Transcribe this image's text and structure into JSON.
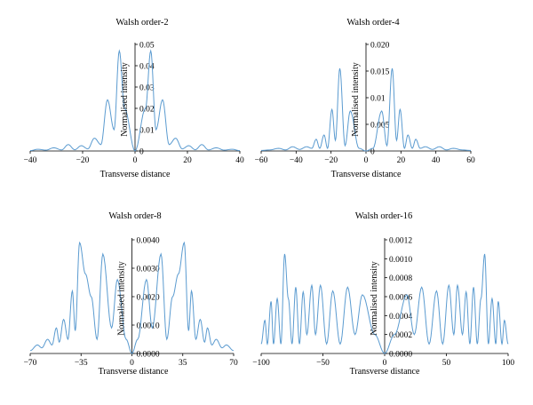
{
  "chart_data": [
    {
      "type": "line",
      "title": "Walsh order-2",
      "xlabel": "Transverse distance",
      "ylabel": "Normalised intensity",
      "xlim": [
        -40,
        40
      ],
      "ylim": [
        0,
        0.05
      ],
      "xticks": [
        -40,
        -20,
        0,
        20,
        40
      ],
      "yticks": [
        0,
        0.01,
        0.02,
        0.03,
        0.04,
        0.05
      ],
      "ytick_labels": [
        "0",
        "0.01",
        "0.02",
        "0.03",
        "0.04",
        "0.05"
      ],
      "x_symmetric": true,
      "peaks": [
        [
          0,
          0
        ],
        [
          4,
          0.02
        ],
        [
          6,
          0.047
        ],
        [
          8,
          0.01
        ],
        [
          10.5,
          0.024
        ],
        [
          13,
          0.003
        ],
        [
          15.5,
          0.006
        ],
        [
          18,
          0.001
        ],
        [
          20.5,
          0.0025
        ],
        [
          23,
          0.0006
        ],
        [
          25.5,
          0.003
        ],
        [
          28,
          0.0005
        ],
        [
          31,
          0.0015
        ],
        [
          34,
          0.0004
        ],
        [
          37,
          0.0008
        ],
        [
          40,
          0.0002
        ]
      ]
    },
    {
      "type": "line",
      "title": "Walsh order-4",
      "xlabel": "Transverse distance",
      "ylabel": "Normalised intensity",
      "xlim": [
        -60,
        60
      ],
      "ylim": [
        0,
        0.02
      ],
      "xticks": [
        -60,
        -40,
        -20,
        0,
        20,
        40,
        60
      ],
      "yticks": [
        0,
        0.005,
        0.01,
        0.015,
        0.02
      ],
      "ytick_labels": [
        "0",
        "0.005",
        "0.01",
        "0.015",
        "0.020"
      ],
      "x_symmetric": true,
      "peaks": [
        [
          0,
          0
        ],
        [
          4,
          0.0005
        ],
        [
          9,
          0.0075
        ],
        [
          12,
          0.001
        ],
        [
          15,
          0.0155
        ],
        [
          17.5,
          0.002
        ],
        [
          19.5,
          0.0078
        ],
        [
          22,
          0.0005
        ],
        [
          24,
          0.003
        ],
        [
          26.5,
          0.0005
        ],
        [
          28.5,
          0.0022
        ],
        [
          31,
          0.0005
        ],
        [
          34,
          0.0008
        ],
        [
          38,
          0.0003
        ],
        [
          42,
          0.0008
        ],
        [
          46,
          0.0002
        ],
        [
          50,
          0.0005
        ],
        [
          55,
          0.0002
        ],
        [
          60,
          0.0001
        ]
      ]
    },
    {
      "type": "line",
      "title": "Walsh order-8",
      "xlabel": "Transverse distance",
      "ylabel": "Normalised intensity",
      "xlim": [
        -70,
        70
      ],
      "ylim": [
        0,
        0.004
      ],
      "xticks": [
        -70,
        -35,
        0,
        35,
        70
      ],
      "yticks": [
        0,
        0.001,
        0.002,
        0.003,
        0.004
      ],
      "ytick_labels": [
        "0.0000",
        "0.0010",
        "0.0020",
        "0.0030",
        "0.0040"
      ],
      "x_symmetric": true,
      "peaks": [
        [
          0,
          0
        ],
        [
          4,
          0.0005
        ],
        [
          10,
          0.0026
        ],
        [
          14,
          0.0009
        ],
        [
          20,
          0.0035
        ],
        [
          24,
          0.0005
        ],
        [
          28,
          0.002
        ],
        [
          32,
          0.0028
        ],
        [
          36,
          0.0039
        ],
        [
          39,
          0.0008
        ],
        [
          41,
          0.0022
        ],
        [
          44,
          0.0005
        ],
        [
          47,
          0.0012
        ],
        [
          50,
          0.0004
        ],
        [
          52,
          0.0009
        ],
        [
          55,
          0.0003
        ],
        [
          58,
          0.0005
        ],
        [
          62,
          0.0002
        ],
        [
          65,
          0.0003
        ],
        [
          70,
          0.0001
        ]
      ]
    },
    {
      "type": "line",
      "title": "Walsh order-16",
      "xlabel": "Transverse distance",
      "ylabel": "Normalised intensity",
      "xlim": [
        -100,
        100
      ],
      "ylim": [
        0,
        0.0012
      ],
      "xticks": [
        -100,
        -50,
        0,
        50,
        100
      ],
      "yticks": [
        0,
        0.0002,
        0.0004,
        0.0006,
        0.0008,
        0.001,
        0.0012
      ],
      "ytick_labels": [
        "0.0000",
        "0.0002",
        "0.0004",
        "0.0006",
        "0.0008",
        "0.0010",
        "0.0012"
      ],
      "x_symmetric": true,
      "peaks": [
        [
          0,
          0
        ],
        [
          8,
          0.0002
        ],
        [
          18,
          0.00062
        ],
        [
          24,
          0.0002
        ],
        [
          30,
          0.0007
        ],
        [
          36,
          0.0001
        ],
        [
          42,
          0.00066
        ],
        [
          47,
          0.0001
        ],
        [
          52,
          0.00072
        ],
        [
          56,
          0.0002
        ],
        [
          59,
          0.00072
        ],
        [
          63,
          0.0002
        ],
        [
          66,
          0.00065
        ],
        [
          69,
          0.0001
        ],
        [
          72,
          0.0007
        ],
        [
          75,
          0.0001
        ],
        [
          78,
          0.00058
        ],
        [
          81,
          0.00105
        ],
        [
          84,
          0.0001
        ],
        [
          87,
          0.00058
        ],
        [
          90,
          0.0001
        ],
        [
          92,
          0.00055
        ],
        [
          95,
          0.0001
        ],
        [
          97,
          0.00035
        ],
        [
          100,
          0.0001
        ]
      ]
    }
  ]
}
